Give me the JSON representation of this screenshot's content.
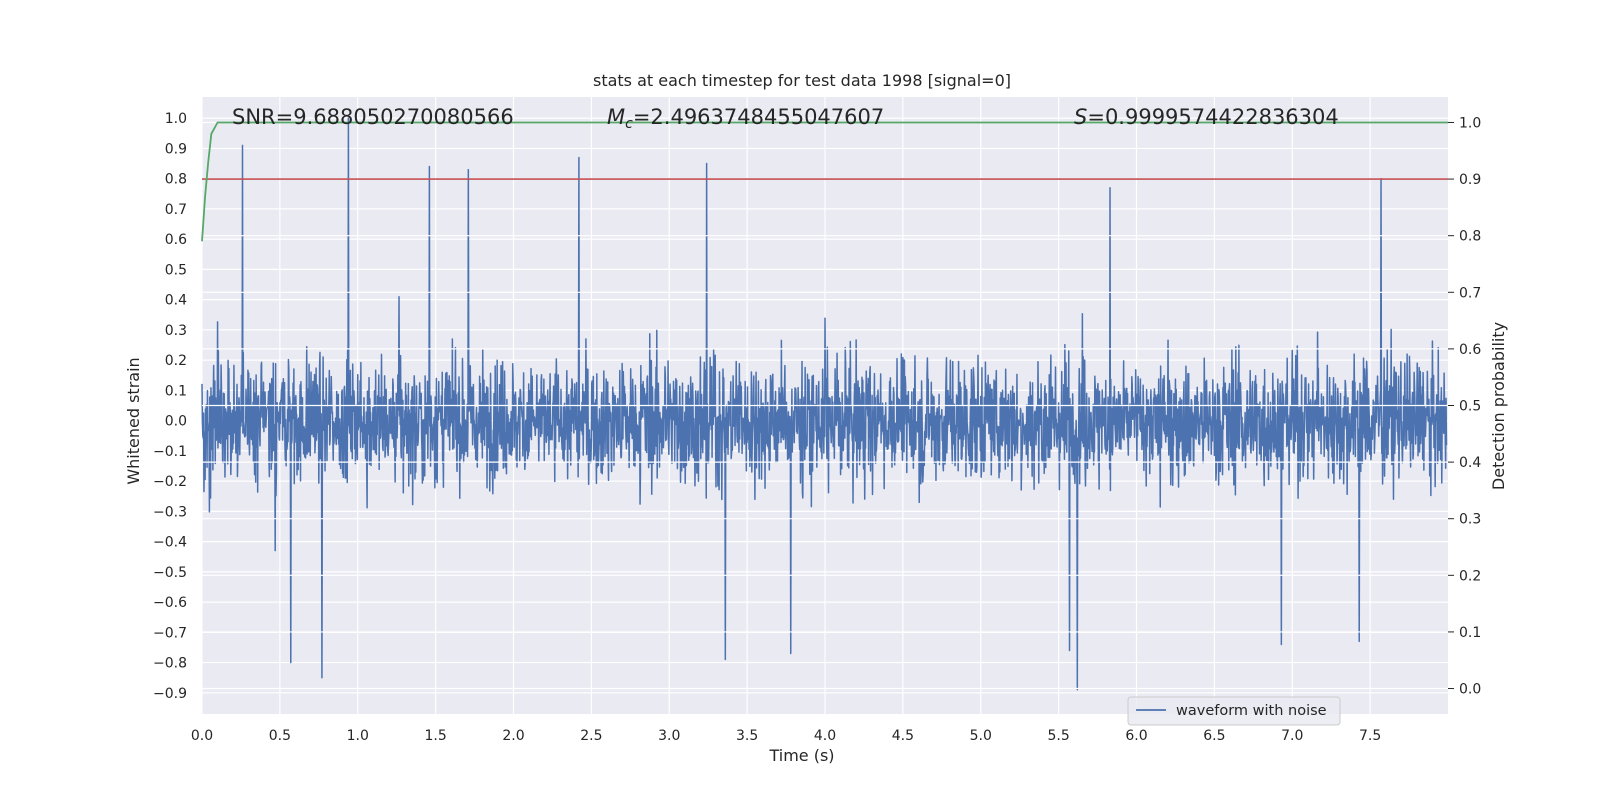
{
  "chart_data": {
    "type": "line",
    "title": "stats at each timestep for test data 1998 [signal=0]",
    "xlabel": "Time (s)",
    "ylabel": "Whitened strain",
    "y2label": "Detection probability",
    "xlim": [
      0.0,
      8.0
    ],
    "ylim": [
      -0.97,
      1.07
    ],
    "y2lim": [
      -0.045,
      1.045
    ],
    "xticks": [
      "0.0",
      "0.5",
      "1.0",
      "1.5",
      "2.0",
      "2.5",
      "3.0",
      "3.5",
      "4.0",
      "4.5",
      "5.0",
      "5.5",
      "6.0",
      "6.5",
      "7.0",
      "7.5"
    ],
    "yticks": [
      "−0.9",
      "−0.8",
      "−0.7",
      "−0.6",
      "−0.5",
      "−0.4",
      "−0.3",
      "−0.2",
      "−0.1",
      "0.0",
      "0.1",
      "0.2",
      "0.3",
      "0.4",
      "0.5",
      "0.6",
      "0.7",
      "0.8",
      "0.9",
      "1.0"
    ],
    "y2ticks": [
      "0.0",
      "0.1",
      "0.2",
      "0.3",
      "0.4",
      "0.5",
      "0.6",
      "0.7",
      "0.8",
      "0.9",
      "1.0"
    ],
    "grid": true,
    "legend": {
      "placement": "lower-right",
      "entries": [
        "waveform with noise"
      ]
    },
    "annotations": {
      "snr": "SNR=9.688050270080566",
      "mc_value": "=2.4963748455047607",
      "mc_symbol": "M",
      "mc_sub": "c",
      "s_value": "=0.9999574422836304",
      "s_symbol": "S"
    },
    "threshold": {
      "axis": "right",
      "value": 0.9,
      "color": "#c44e52"
    },
    "series": [
      {
        "name": "waveform with noise",
        "axis": "left",
        "color": "#4c72b0",
        "amplitude": 0.6,
        "sample_rate_hz": 400,
        "envelope": {
          "max": 1.0,
          "min": -0.89
        },
        "spikes": [
          [
            0.26,
            0.91
          ],
          [
            0.94,
            1.0
          ],
          [
            1.46,
            0.84
          ],
          [
            1.71,
            0.83
          ],
          [
            2.42,
            0.87
          ],
          [
            3.24,
            0.85
          ],
          [
            5.83,
            0.77
          ],
          [
            7.57,
            0.8
          ],
          [
            0.77,
            -0.85
          ],
          [
            0.57,
            -0.8
          ],
          [
            3.36,
            -0.79
          ],
          [
            3.78,
            -0.77
          ],
          [
            5.57,
            -0.76
          ],
          [
            5.62,
            -0.89
          ],
          [
            6.93,
            -0.74
          ],
          [
            7.43,
            -0.73
          ]
        ]
      },
      {
        "axis": "right",
        "color": "#55a868",
        "x": [
          0.0,
          0.02,
          0.04,
          0.06,
          0.08,
          0.1,
          0.13,
          0.2,
          8.0
        ],
        "y": [
          0.79,
          0.87,
          0.93,
          0.98,
          0.99,
          1.0,
          1.0,
          1.0,
          1.0
        ]
      }
    ]
  }
}
